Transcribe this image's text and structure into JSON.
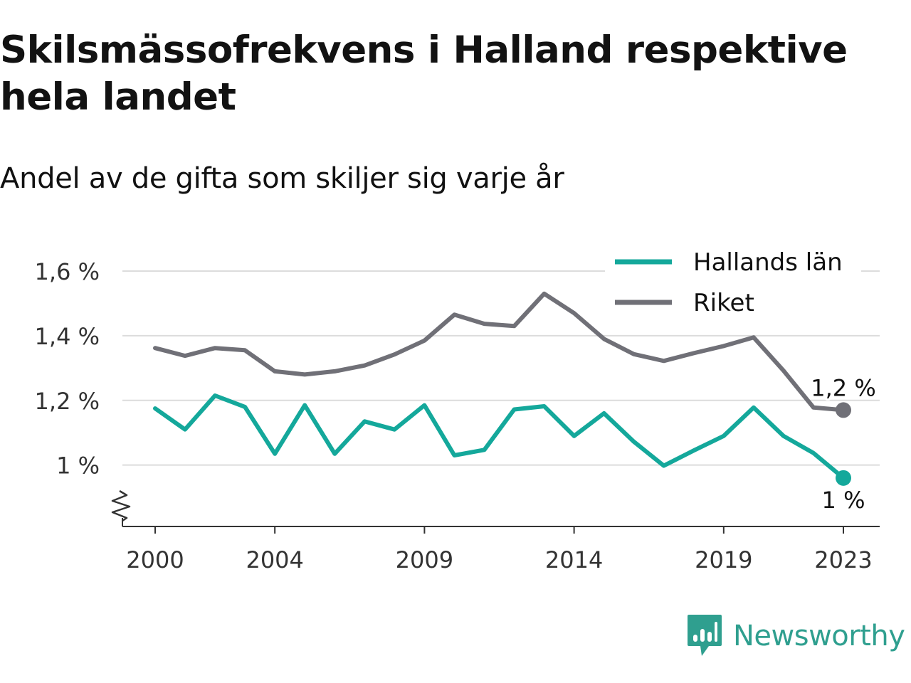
{
  "title": "Skilsmässofrekvens i Halland respektive hela landet",
  "subtitle": "Andel av de gifta som skiljer sig varje år",
  "brand": {
    "name": "Newsworthy",
    "icon": "newsworthy-logo-icon",
    "color": "#2f9f8f"
  },
  "chart_data": {
    "type": "line",
    "x": [
      2000,
      2001,
      2002,
      2003,
      2004,
      2005,
      2006,
      2007,
      2008,
      2009,
      2010,
      2011,
      2012,
      2013,
      2014,
      2015,
      2016,
      2017,
      2018,
      2019,
      2020,
      2021,
      2022,
      2023
    ],
    "xticks": [
      2000,
      2004,
      2009,
      2014,
      2019,
      2023
    ],
    "xtick_labels": [
      "2000",
      "2004",
      "2009",
      "2014",
      "2019",
      "2023"
    ],
    "yticks": [
      1.0,
      1.2,
      1.4,
      1.6
    ],
    "ytick_labels": [
      "1 %",
      "1,2 %",
      "1,4 %",
      "1,6 %"
    ],
    "ylim": [
      0.81,
      1.6
    ],
    "y_axis_break": true,
    "grid": true,
    "legend_position": "top-right",
    "series": [
      {
        "name": "Hallands län",
        "color": "#14a89b",
        "values": [
          1.175,
          1.11,
          1.215,
          1.18,
          1.035,
          1.185,
          1.035,
          1.135,
          1.11,
          1.185,
          1.03,
          1.047,
          1.172,
          1.182,
          1.09,
          1.16,
          1.072,
          0.998,
          1.045,
          1.09,
          1.178,
          1.09,
          1.037,
          0.96
        ],
        "end_label": "1 %"
      },
      {
        "name": "Riket",
        "color": "#707077",
        "values": [
          1.362,
          1.338,
          1.362,
          1.355,
          1.29,
          1.28,
          1.29,
          1.308,
          1.342,
          1.385,
          1.465,
          1.437,
          1.43,
          1.53,
          1.47,
          1.39,
          1.343,
          1.322,
          1.346,
          1.368,
          1.395,
          1.292,
          1.178,
          1.17
        ],
        "end_label": "1,2 %"
      }
    ]
  }
}
